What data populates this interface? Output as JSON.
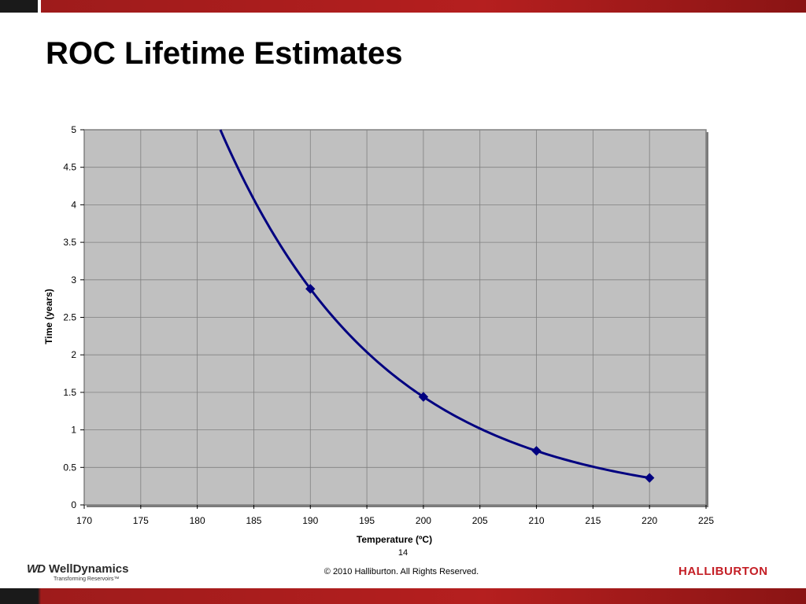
{
  "slide": {
    "title": "ROC Lifetime Estimates",
    "page_number": "14",
    "copyright": "© 2010 Halliburton. All Rights Reserved."
  },
  "logos": {
    "left": {
      "mark": "WD",
      "name": "WellDynamics",
      "tagline": "Transforming Reservoirs™"
    },
    "right": {
      "name": "HALLIBURTON"
    }
  },
  "colors": {
    "series": "#000080",
    "plot_background": "#c0c0c0",
    "gridline": "#808080",
    "brand_red": "#c41e25"
  },
  "chart_data": {
    "type": "scatter",
    "title": "",
    "xlabel": "Temperature (ºC)",
    "ylabel": "Time (years)",
    "xlim": [
      170,
      225
    ],
    "ylim": [
      0,
      5
    ],
    "x_ticks": [
      170,
      175,
      180,
      185,
      190,
      195,
      200,
      205,
      210,
      215,
      220,
      225
    ],
    "y_ticks": [
      0,
      0.5,
      1,
      1.5,
      2,
      2.5,
      3,
      3.5,
      4,
      4.5,
      5
    ],
    "x_tick_labels": [
      "170",
      "175",
      "180",
      "185",
      "190",
      "195",
      "200",
      "205",
      "210",
      "215",
      "220",
      "225"
    ],
    "y_tick_labels": [
      "0",
      "0.5",
      "1",
      "1.5",
      "2",
      "2.5",
      "3",
      "3.5",
      "4",
      "4.5",
      "5"
    ],
    "grid": true,
    "legend": "none",
    "series": [
      {
        "marker": "diamond",
        "line": "smoothed",
        "x": [
          190,
          200,
          210,
          220
        ],
        "y": [
          2.88,
          1.44,
          0.72,
          0.36
        ]
      }
    ]
  }
}
